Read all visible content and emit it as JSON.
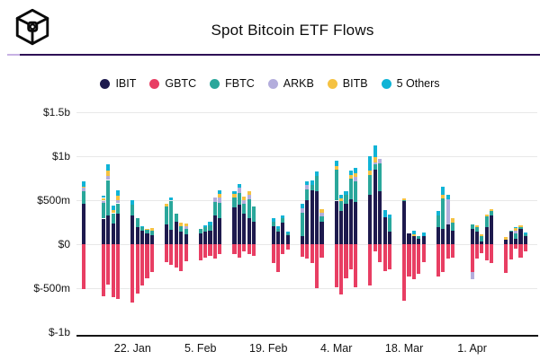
{
  "header": {
    "title": "Spot Bitcoin ETF Flows",
    "logo": "cube-logo",
    "divider_color": "#2d0d55"
  },
  "legend": {
    "items": [
      {
        "key": "IBIT",
        "label": "IBIT",
        "color": "#1e1a4e"
      },
      {
        "key": "GBTC",
        "label": "GBTC",
        "color": "#e83e63"
      },
      {
        "key": "FBTC",
        "label": "FBTC",
        "color": "#2aa79b"
      },
      {
        "key": "ARKB",
        "label": "ARKB",
        "color": "#b3addc"
      },
      {
        "key": "BITB",
        "label": "BITB",
        "color": "#f5c242"
      },
      {
        "key": "OTH",
        "label": "5 Others",
        "color": "#10b4d6"
      }
    ]
  },
  "chart_data": {
    "type": "bar",
    "stacked": true,
    "unit": "USD millions",
    "title": "Spot Bitcoin ETF Flows",
    "ylim": [
      -1000,
      1500
    ],
    "grid": true,
    "legend_position": "top",
    "y_ticks": [
      {
        "label": "$1.5b",
        "value": 1500
      },
      {
        "label": "$1b",
        "value": 1000
      },
      {
        "label": "$500m",
        "value": 500
      },
      {
        "label": "$0",
        "value": 0
      },
      {
        "label": "$-500m",
        "value": -500
      },
      {
        "label": "$-1b",
        "value": -1000
      }
    ],
    "x_ticks": [
      {
        "label": "22. Jan",
        "date": "2024-01-22"
      },
      {
        "label": "5. Feb",
        "date": "2024-02-05"
      },
      {
        "label": "19. Feb",
        "date": "2024-02-19"
      },
      {
        "label": "4. Mar",
        "date": "2024-03-04"
      },
      {
        "label": "18. Mar",
        "date": "2024-03-18"
      },
      {
        "label": "1. Apr",
        "date": "2024-04-01"
      }
    ],
    "columns": [
      "date",
      "IBIT",
      "GBTC",
      "FBTC",
      "ARKB",
      "BITB",
      "OTH"
    ],
    "days": [
      [
        "2024-01-12",
        460,
        -508,
        140,
        40,
        10,
        65
      ],
      [
        "2024-01-16",
        290,
        -592,
        180,
        25,
        30,
        30
      ],
      [
        "2024-01-17",
        330,
        -456,
        400,
        48,
        60,
        75
      ],
      [
        "2024-01-18",
        240,
        -602,
        112,
        0,
        40,
        50
      ],
      [
        "2024-01-19",
        344,
        -625,
        120,
        34,
        51,
        68
      ],
      [
        "2024-01-22",
        326,
        -660,
        119,
        0,
        0,
        51
      ],
      [
        "2024-01-23",
        190,
        -558,
        102,
        0,
        0,
        0
      ],
      [
        "2024-01-24",
        150,
        -472,
        40,
        0,
        0,
        17
      ],
      [
        "2024-01-25",
        120,
        -388,
        40,
        0,
        13,
        0
      ],
      [
        "2024-01-26",
        104,
        -319,
        50,
        0,
        30,
        0
      ],
      [
        "2024-01-29",
        224,
        -200,
        204,
        0,
        34,
        0
      ],
      [
        "2024-01-30",
        165,
        -235,
        330,
        0,
        0,
        40
      ],
      [
        "2024-01-31",
        258,
        -268,
        85,
        0,
        0,
        0
      ],
      [
        "2024-02-01",
        140,
        -303,
        68,
        0,
        34,
        0
      ],
      [
        "2024-02-02",
        109,
        -194,
        61,
        34,
        27,
        0
      ],
      [
        "2024-02-05",
        122,
        -184,
        51,
        0,
        0,
        0
      ],
      [
        "2024-02-06",
        140,
        -150,
        55,
        0,
        0,
        20
      ],
      [
        "2024-02-07",
        156,
        -133,
        61,
        0,
        0,
        41
      ],
      [
        "2024-02-08",
        326,
        -163,
        153,
        51,
        0,
        0
      ],
      [
        "2024-02-09",
        292,
        -115,
        177,
        61,
        41,
        44
      ],
      [
        "2024-02-12",
        420,
        -112,
        112,
        0,
        40,
        30
      ],
      [
        "2024-02-13",
        445,
        -150,
        136,
        58,
        0,
        44
      ],
      [
        "2024-02-14",
        344,
        -82,
        112,
        48,
        34,
        0
      ],
      [
        "2024-02-15",
        292,
        -112,
        221,
        51,
        41,
        0
      ],
      [
        "2024-02-16",
        258,
        -133,
        170,
        0,
        0,
        0
      ],
      [
        "2024-02-20",
        207,
        -217,
        51,
        0,
        0,
        34
      ],
      [
        "2024-02-21",
        146,
        -319,
        27,
        0,
        0,
        34
      ],
      [
        "2024-02-22",
        242,
        -115,
        51,
        0,
        0,
        34
      ],
      [
        "2024-02-23",
        105,
        -65,
        17,
        0,
        0,
        17
      ],
      [
        "2024-02-26",
        90,
        -143,
        270,
        51,
        0,
        51
      ],
      [
        "2024-02-27",
        500,
        -167,
        118,
        51,
        0,
        41
      ],
      [
        "2024-02-28",
        612,
        -216,
        60,
        0,
        0,
        50
      ],
      [
        "2024-02-29",
        600,
        -500,
        180,
        0,
        0,
        50
      ],
      [
        "2024-03-01",
        258,
        -150,
        61,
        41,
        41,
        0
      ],
      [
        "2024-03-04",
        495,
        -490,
        350,
        0,
        40,
        60
      ],
      [
        "2024-03-05",
        377,
        -574,
        112,
        0,
        34,
        41
      ],
      [
        "2024-03-06",
        462,
        -388,
        95,
        0,
        0,
        48
      ],
      [
        "2024-03-07",
        513,
        -286,
        228,
        0,
        44,
        51
      ],
      [
        "2024-03-08",
        480,
        -490,
        238,
        51,
        41,
        54
      ],
      [
        "2024-03-11",
        564,
        -472,
        221,
        0,
        51,
        160
      ],
      [
        "2024-03-12",
        850,
        -82,
        60,
        20,
        58,
        140
      ],
      [
        "2024-03-13",
        598,
        -200,
        322,
        52,
        0,
        0
      ],
      [
        "2024-03-14",
        309,
        -303,
        0,
        0,
        0,
        75
      ],
      [
        "2024-03-15",
        139,
        -286,
        153,
        0,
        0,
        44
      ],
      [
        "2024-03-18",
        490,
        -640,
        15,
        0,
        15,
        0
      ],
      [
        "2024-03-19",
        120,
        -370,
        0,
        0,
        0,
        0
      ],
      [
        "2024-03-20",
        88,
        -395,
        0,
        0,
        27,
        34
      ],
      [
        "2024-03-21",
        60,
        -337,
        28,
        0,
        0,
        0
      ],
      [
        "2024-03-22",
        95,
        -200,
        0,
        0,
        0,
        35
      ],
      [
        "2024-03-25",
        190,
        -370,
        136,
        0,
        0,
        51
      ],
      [
        "2024-03-26",
        173,
        -319,
        343,
        0,
        41,
        92
      ],
      [
        "2024-03-27",
        224,
        -166,
        0,
        289,
        0,
        51
      ],
      [
        "2024-03-28",
        156,
        -150,
        85,
        0,
        51,
        0
      ],
      [
        "2024-04-01",
        173,
        -313,
        51,
        -82,
        0,
        0
      ],
      [
        "2024-04-02",
        139,
        -166,
        58,
        0,
        20,
        0
      ],
      [
        "2024-04-03",
        27,
        -100,
        61,
        0,
        27,
        0
      ],
      [
        "2024-04-04",
        190,
        -184,
        126,
        0,
        20,
        0
      ],
      [
        "2024-04-05",
        326,
        -218,
        54,
        0,
        20,
        0
      ],
      [
        "2024-04-08",
        48,
        -327,
        0,
        0,
        34,
        0
      ],
      [
        "2024-04-09",
        139,
        -177,
        10,
        0,
        0,
        0
      ],
      [
        "2024-04-10",
        61,
        -48,
        61,
        34,
        27,
        14
      ],
      [
        "2024-04-11",
        173,
        -156,
        24,
        0,
        20,
        0
      ],
      [
        "2024-04-12",
        95,
        -82,
        15,
        0,
        0,
        27
      ]
    ]
  }
}
